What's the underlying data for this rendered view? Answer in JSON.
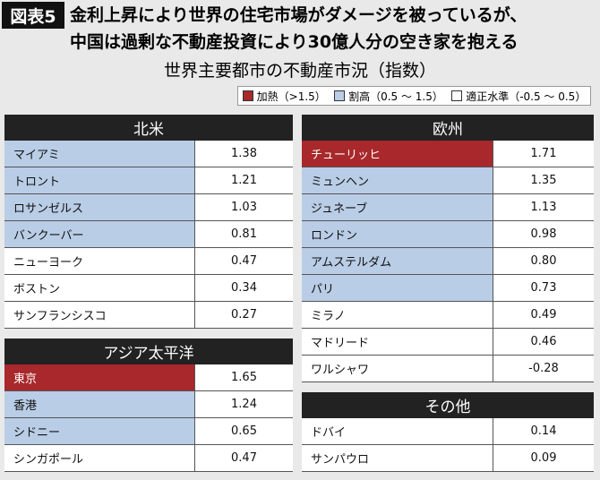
{
  "header": {
    "label": "図表5",
    "title_lines": [
      "金利上昇により世界の住宅市場がダメージを被っているが、",
      "中国は過剰な不動産投資により30億人分の空き家を抱える"
    ],
    "subtitle": "世界主要都市の不動産市況（指数）"
  },
  "legend": [
    {
      "color": "#a8282b",
      "label": "加熱（>1.5）"
    },
    {
      "color": "#b9cde6",
      "label": "割高（0.5 ～ 1.5）"
    },
    {
      "color": "#ffffff",
      "label": "適正水準（-0.5 ～ 0.5）"
    }
  ],
  "tables": [
    {
      "title": "北米",
      "rows": [
        {
          "city": "マイアミ",
          "value": "1.38",
          "color": "#b9cde6"
        },
        {
          "city": "トロント",
          "value": "1.21",
          "color": "#b9cde6"
        },
        {
          "city": "ロサンゼルス",
          "value": "1.03",
          "color": "#b9cde6"
        },
        {
          "city": "バンクーバー",
          "value": "0.81",
          "color": "#b9cde6"
        },
        {
          "city": "ニューヨーク",
          "value": "0.47",
          "color": "#ffffff"
        },
        {
          "city": "ボストン",
          "value": "0.34",
          "color": "#ffffff"
        },
        {
          "city": "サンフランシスコ",
          "value": "0.27",
          "color": "#ffffff"
        }
      ]
    },
    {
      "title": "アジア太平洋",
      "rows": [
        {
          "city": "東京",
          "value": "1.65",
          "color": "#a8282b"
        },
        {
          "city": "香港",
          "value": "1.24",
          "color": "#b9cde6"
        },
        {
          "city": "シドニー",
          "value": "0.65",
          "color": "#b9cde6"
        },
        {
          "city": "シンガポール",
          "value": "0.47",
          "color": "#ffffff"
        }
      ]
    },
    {
      "title": "欧州",
      "rows": [
        {
          "city": "チューリッヒ",
          "value": "1.71",
          "color": "#a8282b"
        },
        {
          "city": "ミュンヘン",
          "value": "1.35",
          "color": "#b9cde6"
        },
        {
          "city": "ジュネーブ",
          "value": "1.13",
          "color": "#b9cde6"
        },
        {
          "city": "ロンドン",
          "value": "0.98",
          "color": "#b9cde6"
        },
        {
          "city": "アムステルダム",
          "value": "0.80",
          "color": "#b9cde6"
        },
        {
          "city": "パリ",
          "value": "0.73",
          "color": "#b9cde6"
        },
        {
          "city": "ミラノ",
          "value": "0.49",
          "color": "#ffffff"
        },
        {
          "city": "マドリード",
          "value": "0.46",
          "color": "#ffffff"
        },
        {
          "city": "ワルシャワ",
          "value": "-0.28",
          "color": "#ffffff"
        }
      ]
    },
    {
      "title": "その他",
      "rows": [
        {
          "city": "ドバイ",
          "value": "0.14",
          "color": "#ffffff"
        },
        {
          "city": "サンパウロ",
          "value": "0.09",
          "color": "#ffffff"
        }
      ]
    }
  ]
}
